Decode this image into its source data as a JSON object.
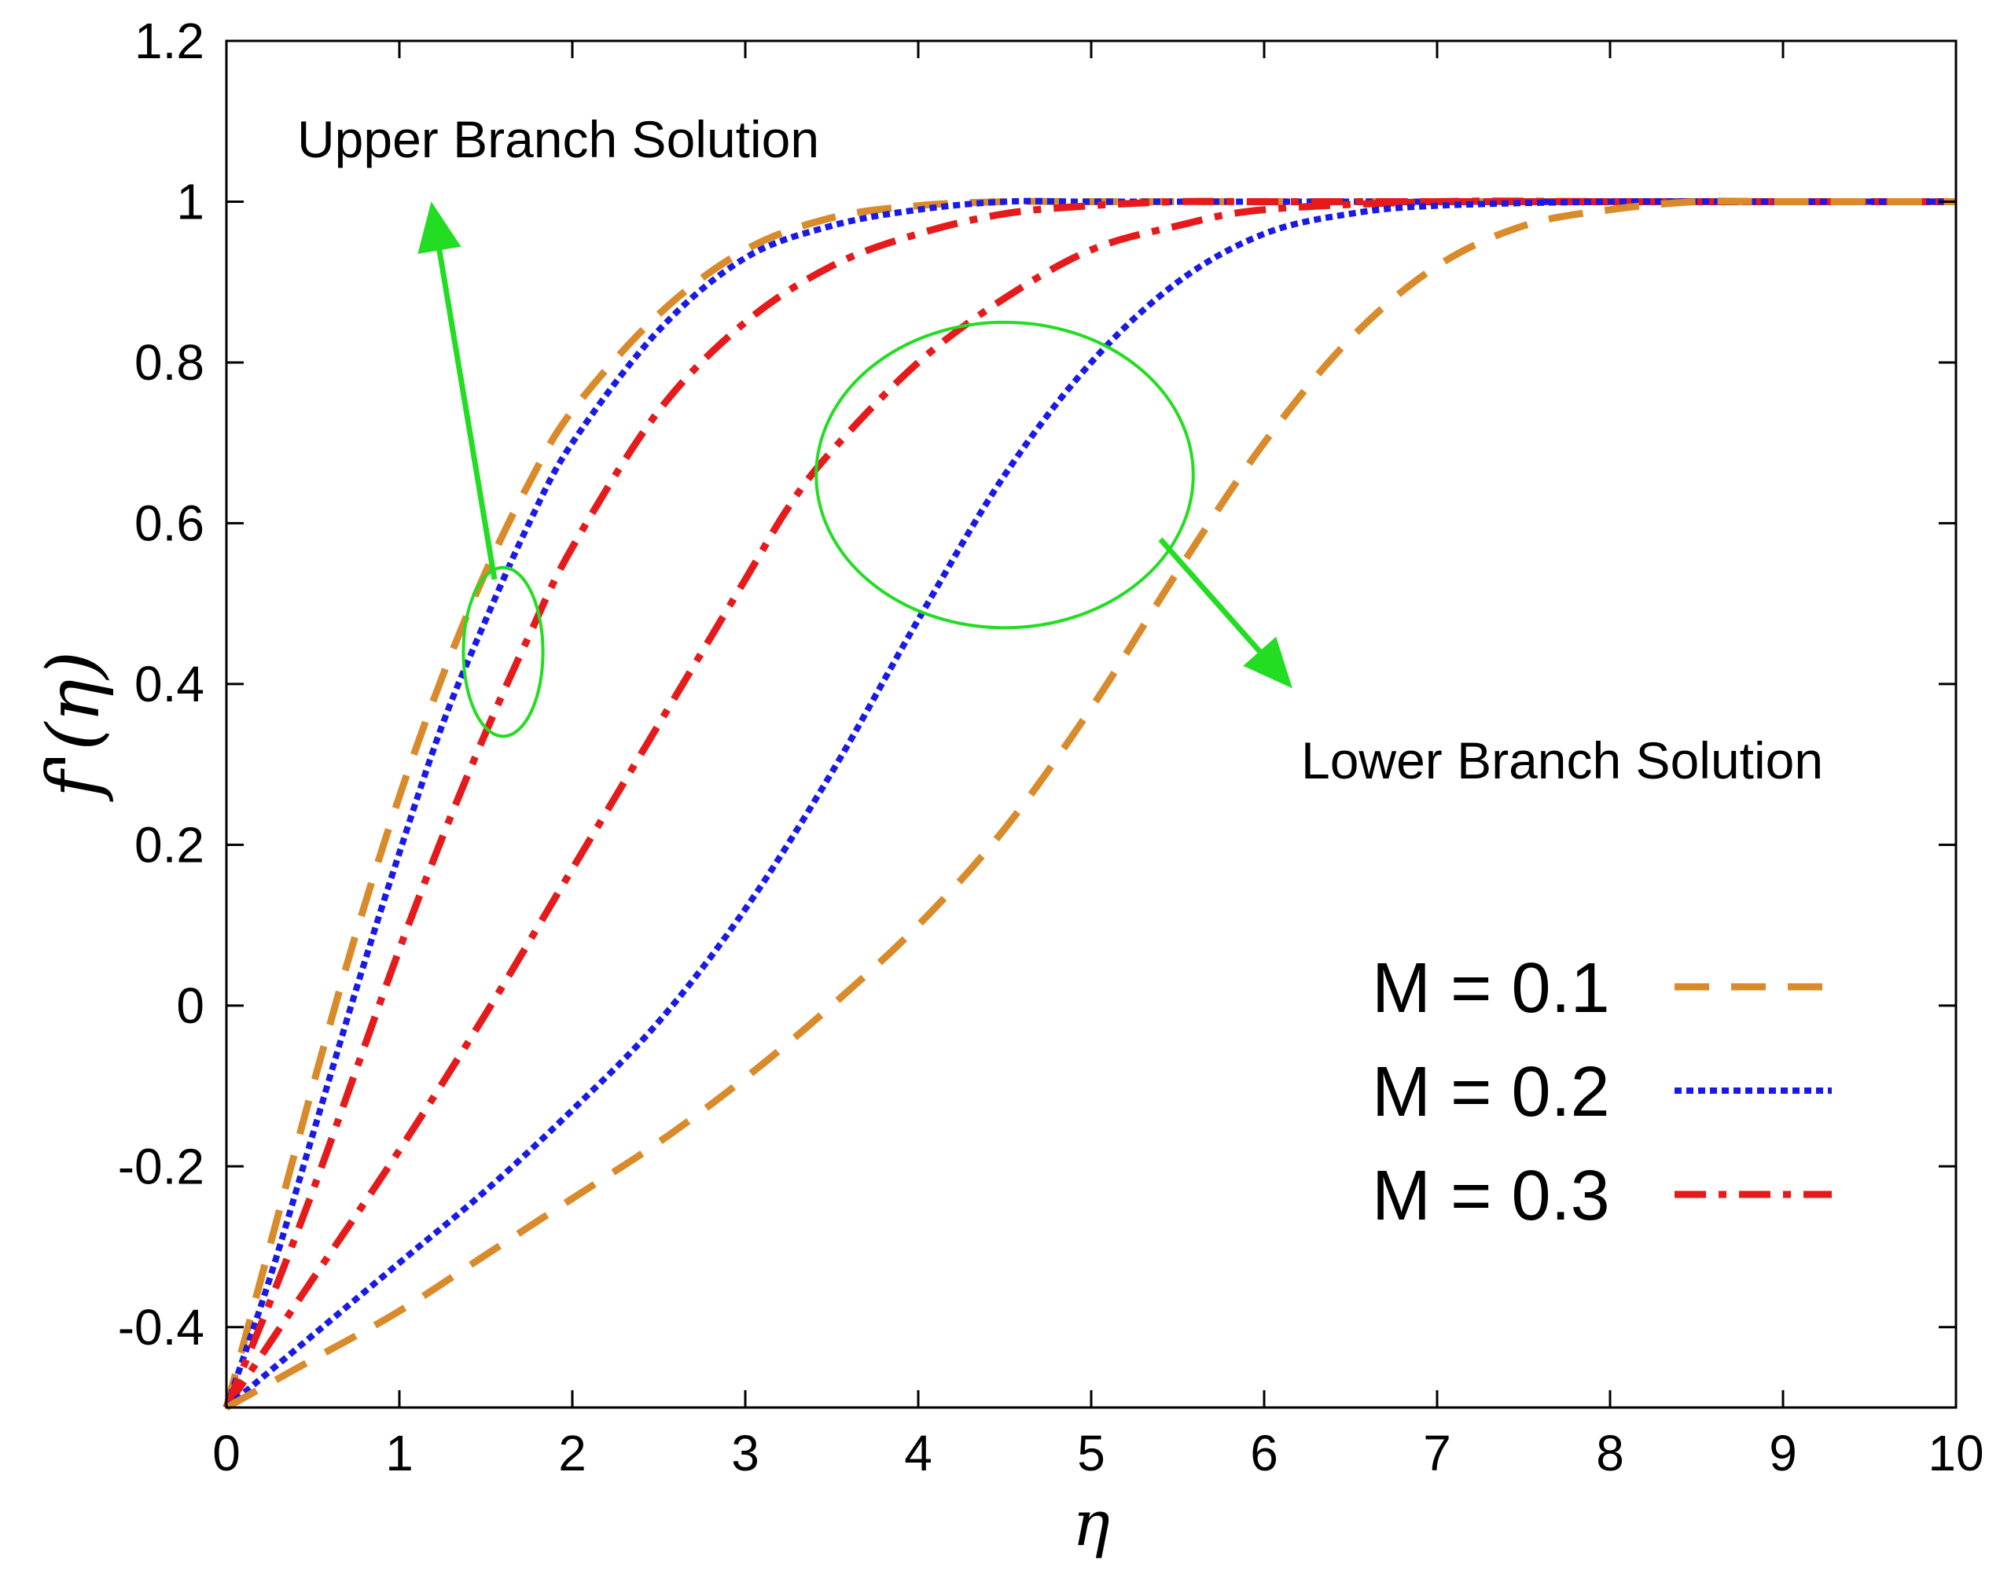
{
  "chart_data": {
    "type": "line",
    "title": "",
    "xlabel": "η",
    "ylabel": "f'(η)",
    "xlim": [
      0,
      10
    ],
    "ylim": [
      -0.5,
      1.2
    ],
    "xticks": [
      0,
      1,
      2,
      3,
      4,
      5,
      6,
      7,
      8,
      9,
      10
    ],
    "yticks": [
      -0.4,
      -0.2,
      0,
      0.2,
      0.4,
      0.6,
      0.8,
      1,
      1.2
    ],
    "xtick_labels": [
      "0",
      "1",
      "2",
      "3",
      "4",
      "5",
      "6",
      "7",
      "8",
      "9",
      "10"
    ],
    "ytick_labels": [
      "-0.4",
      "-0.2",
      "0",
      "0.2",
      "0.4",
      "0.6",
      "0.8",
      "1",
      "1.2"
    ],
    "grid": false,
    "legend_position": "bottom-right",
    "series": [
      {
        "name": "M = 0.1",
        "branch": "upper",
        "color": "#D98B2B",
        "style": "dashed",
        "x": [
          0,
          0.25,
          0.5,
          0.75,
          1,
          1.25,
          1.5,
          1.75,
          2,
          2.5,
          3,
          3.5,
          4,
          4.5,
          5,
          6,
          7,
          8,
          9,
          10
        ],
        "y": [
          -0.5,
          -0.3,
          -0.1,
          0.09,
          0.26,
          0.41,
          0.54,
          0.65,
          0.74,
          0.86,
          0.94,
          0.98,
          0.995,
          1.0,
          1.0,
          1.0,
          1.0,
          1.0,
          1.0,
          1.0
        ]
      },
      {
        "name": "M = 0.2",
        "branch": "upper",
        "color": "#1A1AE6",
        "style": "dotted",
        "x": [
          0,
          0.25,
          0.5,
          0.75,
          1,
          1.25,
          1.5,
          1.75,
          2,
          2.5,
          3,
          3.5,
          4,
          4.5,
          5,
          6,
          7,
          8,
          9,
          10
        ],
        "y": [
          -0.5,
          -0.34,
          -0.16,
          0.02,
          0.19,
          0.35,
          0.48,
          0.6,
          0.7,
          0.84,
          0.93,
          0.97,
          0.99,
          1.0,
          1.0,
          1.0,
          1.0,
          1.0,
          1.0,
          1.0
        ]
      },
      {
        "name": "M = 0.3",
        "branch": "upper",
        "color": "#E61A1A",
        "style": "dashdot",
        "x": [
          0,
          0.25,
          0.5,
          0.75,
          1,
          1.25,
          1.5,
          1.75,
          2,
          2.5,
          3,
          3.5,
          4,
          4.5,
          5,
          5.5,
          6,
          7,
          8,
          9,
          10
        ],
        "y": [
          -0.5,
          -0.37,
          -0.23,
          -0.08,
          0.07,
          0.21,
          0.34,
          0.46,
          0.57,
          0.74,
          0.85,
          0.92,
          0.96,
          0.985,
          0.995,
          1.0,
          1.0,
          1.0,
          1.0,
          1.0,
          1.0
        ]
      },
      {
        "name": "M = 0.3",
        "branch": "lower",
        "color": "#E61A1A",
        "style": "dashdot",
        "x": [
          0,
          0.5,
          1,
          1.5,
          2,
          2.5,
          3,
          3.25,
          3.5,
          4,
          4.5,
          5,
          5.5,
          6,
          7,
          8,
          9,
          10
        ],
        "y": [
          -0.5,
          -0.34,
          -0.18,
          -0.01,
          0.17,
          0.35,
          0.53,
          0.62,
          0.69,
          0.8,
          0.88,
          0.94,
          0.97,
          0.99,
          1.0,
          1.0,
          1.0,
          1.0
        ]
      },
      {
        "name": "M = 0.2",
        "branch": "lower",
        "color": "#1A1AE6",
        "style": "dotted",
        "x": [
          0,
          0.5,
          1,
          1.5,
          2,
          2.5,
          3,
          3.5,
          4,
          4.5,
          5,
          5.5,
          6,
          6.5,
          7,
          8,
          9,
          10
        ],
        "y": [
          -0.5,
          -0.41,
          -0.32,
          -0.23,
          -0.13,
          -0.02,
          0.12,
          0.29,
          0.48,
          0.66,
          0.8,
          0.9,
          0.96,
          0.985,
          0.995,
          1.0,
          1.0,
          1.0
        ]
      },
      {
        "name": "M = 0.1",
        "branch": "lower",
        "color": "#D98B2B",
        "style": "dashed",
        "x": [
          0,
          0.5,
          1,
          1.5,
          2,
          2.5,
          3,
          3.5,
          4,
          4.5,
          5,
          5.5,
          6,
          6.5,
          7,
          7.5,
          8,
          8.5,
          9,
          10
        ],
        "y": [
          -0.5,
          -0.44,
          -0.38,
          -0.31,
          -0.24,
          -0.17,
          -0.09,
          0.0,
          0.1,
          0.22,
          0.37,
          0.54,
          0.7,
          0.83,
          0.92,
          0.97,
          0.99,
          1.0,
          1.0,
          1.0
        ]
      }
    ],
    "legend": [
      {
        "label": "M = 0.1",
        "color": "#D98B2B",
        "style": "dashed"
      },
      {
        "label": "M = 0.2",
        "color": "#1A1AE6",
        "style": "dotted"
      },
      {
        "label": "M = 0.3",
        "color": "#E61A1A",
        "style": "dashdot"
      }
    ],
    "annotations": [
      {
        "text": "Upper Branch Solution",
        "ellipse_center": [
          1.6,
          0.44
        ],
        "ellipse_radii": [
          0.23,
          0.105
        ],
        "arrow_from": [
          1.55,
          0.53
        ],
        "arrow_to": [
          1.2,
          0.98
        ]
      },
      {
        "text": "Lower Branch Solution",
        "ellipse_center": [
          4.5,
          0.66
        ],
        "ellipse_radii": [
          1.09,
          0.19
        ],
        "arrow_from": [
          5.4,
          0.58
        ],
        "arrow_to": [
          6.1,
          0.41
        ]
      }
    ],
    "annotation_color": "#22DD22"
  }
}
